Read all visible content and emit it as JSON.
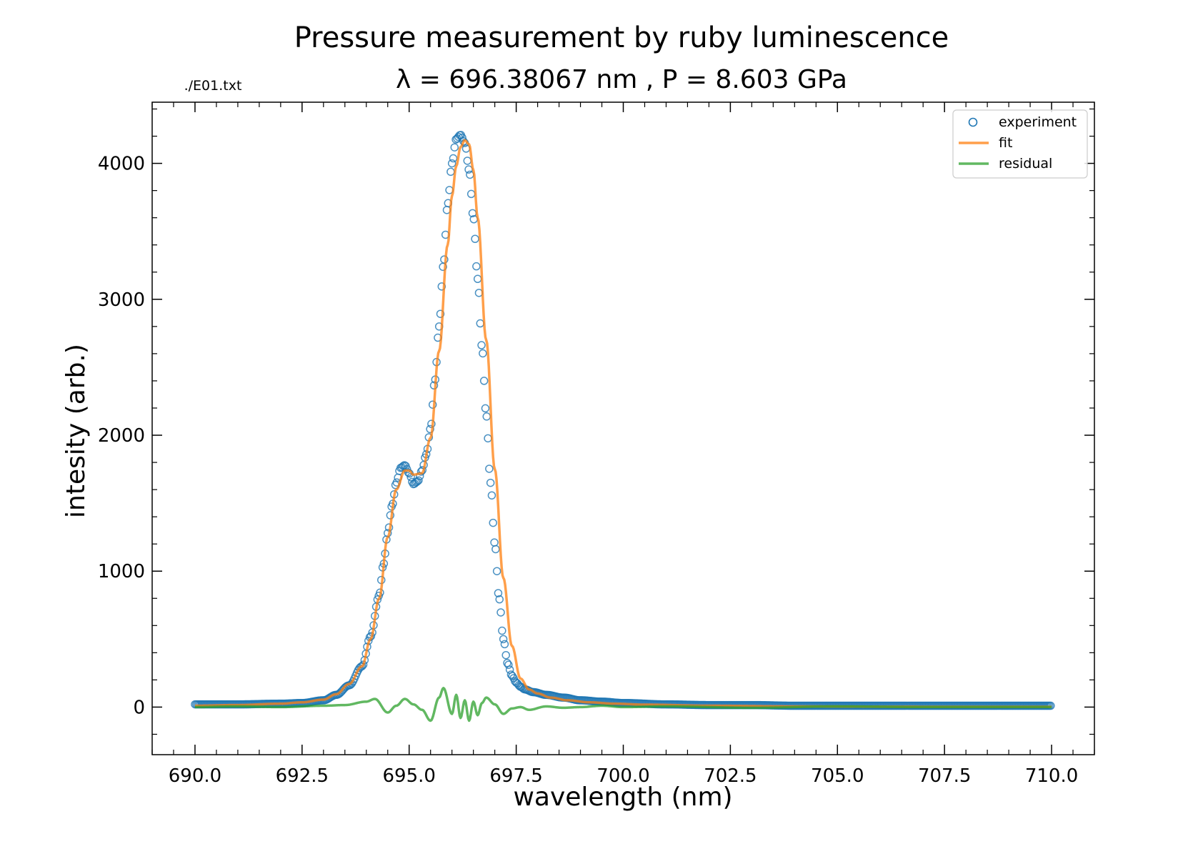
{
  "chart_data": {
    "type": "scatter",
    "title": "Pressure measurement by ruby luminescence",
    "subtitle": "λ = 696.38067 nm  ,  P = 8.603 GPa",
    "file_label": "./E01.txt",
    "xlabel": "wavelength (nm)",
    "ylabel": "intesity (arb.)",
    "xlim": [
      689.0,
      711.0
    ],
    "ylim": [
      -350,
      4450
    ],
    "x_ticks": [
      690.0,
      692.5,
      695.0,
      697.5,
      700.0,
      702.5,
      705.0,
      707.5,
      710.0
    ],
    "x_tick_labels": [
      "690.0",
      "692.5",
      "695.0",
      "697.5",
      "700.0",
      "702.5",
      "705.0",
      "707.5",
      "710.0"
    ],
    "y_ticks": [
      0,
      1000,
      2000,
      3000,
      4000
    ],
    "y_tick_labels": [
      "0",
      "1000",
      "2000",
      "3000",
      "4000"
    ],
    "grid": false,
    "legend_position": "top-right",
    "colors": {
      "experiment": "#1f77b4",
      "fit": "#ff7f0e",
      "residual": "#2ca02c"
    },
    "series": [
      {
        "name": "experiment",
        "kind": "scatter-open-circle",
        "x": [
          690.0,
          691.0,
          692.0,
          692.5,
          693.0,
          693.3,
          693.6,
          693.9,
          694.1,
          694.3,
          694.4,
          694.5,
          694.6,
          694.7,
          694.8,
          694.9,
          695.0,
          695.1,
          695.2,
          695.3,
          695.4,
          695.5,
          695.6,
          695.7,
          695.8,
          695.9,
          696.0,
          696.1,
          696.2,
          696.3,
          696.4,
          696.5,
          696.6,
          696.7,
          696.8,
          696.9,
          697.0,
          697.1,
          697.2,
          697.3,
          697.4,
          697.5,
          697.6,
          697.7,
          697.9,
          698.2,
          698.6,
          699.0,
          699.5,
          700.0,
          701.0,
          702.0,
          703.0,
          704.0,
          705.0,
          706.0,
          707.0,
          708.0,
          709.0,
          710.0
        ],
        "y": [
          20,
          20,
          25,
          30,
          50,
          90,
          160,
          300,
          520,
          820,
          1050,
          1280,
          1480,
          1650,
          1760,
          1780,
          1720,
          1640,
          1660,
          1740,
          1860,
          2050,
          2400,
          2800,
          3250,
          3700,
          4000,
          4180,
          4210,
          4150,
          3950,
          3600,
          3150,
          2650,
          2150,
          1650,
          1200,
          800,
          500,
          320,
          230,
          180,
          150,
          130,
          110,
          90,
          70,
          50,
          40,
          30,
          20,
          15,
          15,
          10,
          10,
          10,
          10,
          10,
          10,
          10
        ]
      },
      {
        "name": "fit",
        "kind": "line",
        "x": [
          690.0,
          691.0,
          692.0,
          692.5,
          693.0,
          693.3,
          693.6,
          693.9,
          694.1,
          694.3,
          694.5,
          694.7,
          694.9,
          695.0,
          695.1,
          695.3,
          695.5,
          695.7,
          695.9,
          696.0,
          696.1,
          696.2,
          696.3,
          696.4,
          696.5,
          696.6,
          696.8,
          697.0,
          697.2,
          697.4,
          697.6,
          697.8,
          698.0,
          698.3,
          698.7,
          699.2,
          699.8,
          700.5,
          702.0,
          704.0,
          706.0,
          708.0,
          710.0
        ],
        "y": [
          10,
          15,
          25,
          35,
          55,
          95,
          170,
          300,
          500,
          800,
          1250,
          1600,
          1740,
          1740,
          1710,
          1720,
          1980,
          2620,
          3400,
          3760,
          3980,
          4120,
          4170,
          4140,
          3950,
          3600,
          2700,
          1750,
          950,
          450,
          210,
          130,
          100,
          70,
          50,
          35,
          25,
          18,
          10,
          5,
          3,
          2,
          2
        ]
      },
      {
        "name": "residual",
        "kind": "line",
        "x": [
          690.0,
          691.0,
          692.0,
          693.0,
          693.5,
          694.0,
          694.2,
          694.5,
          694.7,
          694.9,
          695.1,
          695.3,
          695.5,
          695.7,
          695.8,
          696.0,
          696.1,
          696.2,
          696.3,
          696.4,
          696.5,
          696.6,
          696.7,
          696.8,
          697.0,
          697.2,
          697.4,
          697.6,
          697.8,
          698.2,
          698.6,
          699.0,
          699.5,
          700.0,
          701.0,
          703.0,
          705.0,
          707.0,
          710.0
        ],
        "y": [
          0,
          5,
          0,
          10,
          15,
          40,
          60,
          -40,
          10,
          60,
          20,
          -20,
          -100,
          70,
          140,
          -50,
          90,
          -80,
          50,
          -100,
          40,
          -60,
          30,
          70,
          20,
          -50,
          -10,
          0,
          -20,
          5,
          -5,
          0,
          10,
          0,
          5,
          -5,
          5,
          0,
          0
        ]
      }
    ]
  }
}
